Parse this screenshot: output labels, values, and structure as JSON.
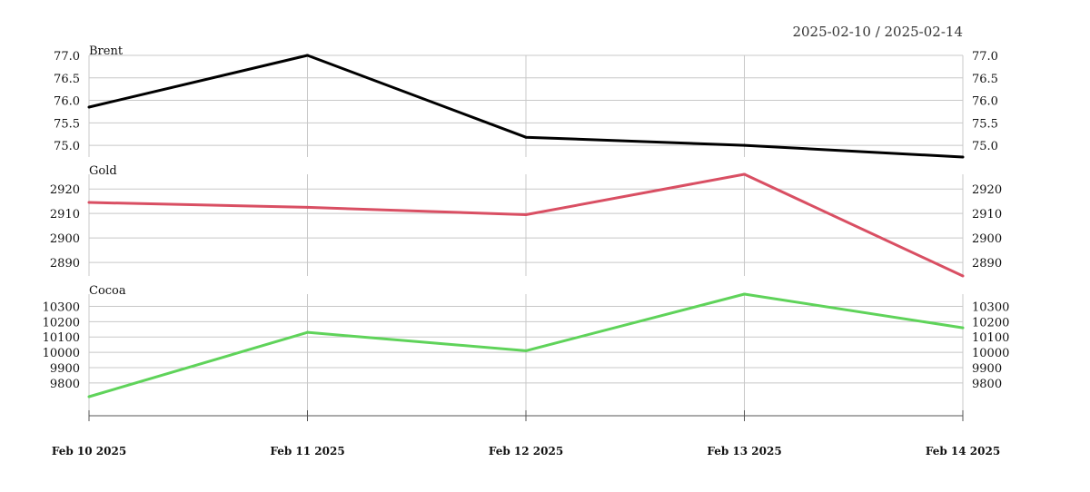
{
  "header": {
    "date_range": "2025-02-10 / 2025-02-14"
  },
  "chart_data": {
    "type": "line",
    "x": [
      "Feb 10 2025",
      "Feb 11 2025",
      "Feb 12 2025",
      "Feb 13 2025",
      "Feb 14 2025"
    ],
    "grid": true,
    "panels": [
      {
        "name": "Brent",
        "color": "#000000",
        "values": [
          75.85,
          77.0,
          75.18,
          75.0,
          74.74
        ],
        "ylim": [
          74.74,
          77.0
        ],
        "yticks": [
          75.0,
          75.5,
          76.0,
          76.5,
          77.0
        ],
        "tick_labels": [
          "75.0",
          "75.5",
          "76.0",
          "76.5",
          "77.0"
        ]
      },
      {
        "name": "Gold",
        "color": "#d94f63",
        "values": [
          2914.5,
          2912.5,
          2909.5,
          2926,
          2884.5
        ],
        "ylim": [
          2884.5,
          2926
        ],
        "yticks": [
          2890,
          2900,
          2910,
          2920
        ],
        "tick_labels": [
          "2890",
          "2900",
          "2910",
          "2920"
        ]
      },
      {
        "name": "Cocoa",
        "color": "#5fd35a",
        "values": [
          9710,
          10130,
          10010,
          10380,
          10160
        ],
        "ylim": [
          9710,
          10380
        ],
        "yticks": [
          9800,
          9900,
          10000,
          10100,
          10200,
          10300
        ],
        "tick_labels": [
          "9800",
          "9900",
          "10000",
          "10100",
          "10200",
          "10300"
        ]
      }
    ]
  }
}
